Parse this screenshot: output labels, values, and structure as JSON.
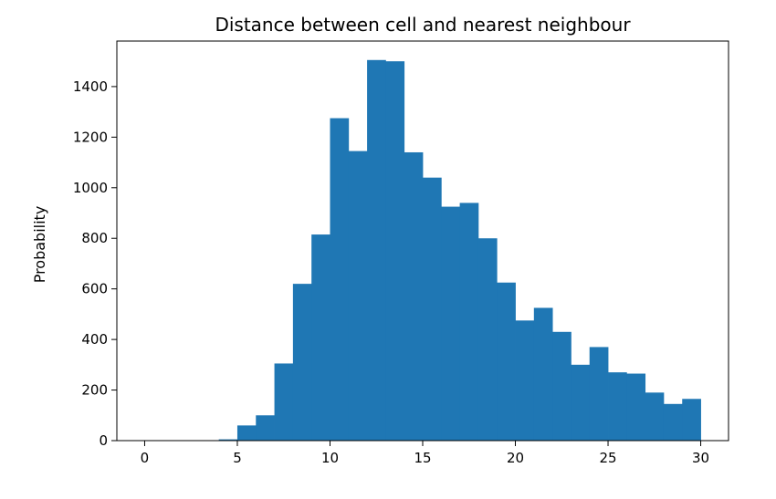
{
  "chart_data": {
    "type": "bar",
    "title": "Distance between cell and nearest neighbour",
    "xlabel": "",
    "ylabel": "Probability",
    "xlim": [
      -1.5,
      31.5
    ],
    "ylim": [
      0,
      1580
    ],
    "xticks": [
      0,
      5,
      10,
      15,
      20,
      25,
      30
    ],
    "yticks": [
      0,
      200,
      400,
      600,
      800,
      1000,
      1200,
      1400
    ],
    "bin_edges": [
      0,
      1,
      2,
      3,
      4,
      5,
      6,
      7,
      8,
      9,
      10,
      11,
      12,
      13,
      14,
      15,
      16,
      17,
      18,
      19,
      20,
      21,
      22,
      23,
      24,
      25,
      26,
      27,
      28,
      29,
      30
    ],
    "values": [
      0,
      0,
      0,
      0,
      5,
      60,
      100,
      305,
      620,
      815,
      1275,
      1145,
      1505,
      1500,
      1140,
      1040,
      925,
      940,
      800,
      625,
      475,
      525,
      430,
      300,
      370,
      270,
      265,
      190,
      145,
      165
    ],
    "color": "#1f77b4",
    "grid": false,
    "legend": "none"
  }
}
